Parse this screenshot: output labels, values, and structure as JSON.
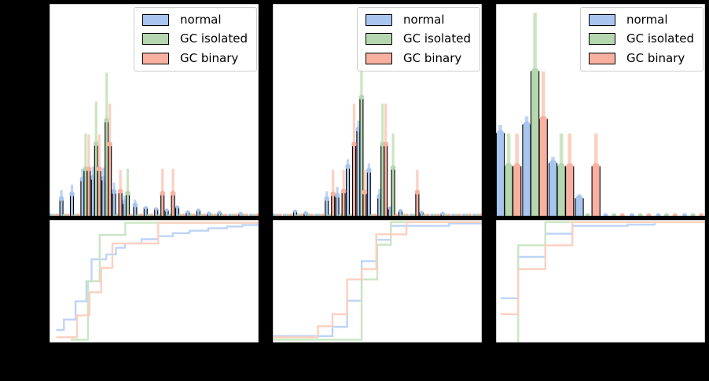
{
  "note": "axis tick labels and axis titles are rendered black-on-black and are not legible in the image; values below are fractions of each axis span",
  "colors": {
    "background": "#000000",
    "panel_background": "#ffffff",
    "spine": "#000000",
    "legend_border": "#cccccc",
    "normal": "#a8c5ef",
    "gc_isolated": "#b5d7af",
    "gc_binary": "#f8b1a0",
    "normal_light": "#bdd4f6",
    "gc_isolated_light": "#cbe5c2",
    "gc_binary_light": "#fbd0c0"
  },
  "legend": {
    "items": [
      {
        "id": "normal",
        "label": "normal"
      },
      {
        "id": "gc_isolated",
        "label": "GC isolated"
      },
      {
        "id": "gc_binary",
        "label": "GC binary"
      }
    ]
  },
  "chart_data": [
    {
      "panel": "left",
      "top_histogram": {
        "type": "bar",
        "bins": 20,
        "y_units": "fraction of axis height",
        "series": [
          {
            "name": "normal",
            "values": [
              0.012,
              0.085,
              0.107,
              0.176,
              0.184,
              0.18,
              0.118,
              0.07,
              0.055,
              0.042,
              0.036,
              0.03,
              0.045,
              0.022,
              0.03,
              0.016,
              0.02,
              0.013,
              0.015,
              0.01
            ],
            "err_upper": [
              0,
              0.125,
              0.15,
              0.225,
              0.235,
              0.23,
              0.16,
              0.1,
              0.08,
              0,
              0,
              0,
              0,
              0,
              0,
              0,
              0,
              0,
              0,
              0
            ]
          },
          {
            "name": "GC isolated",
            "values": [
              0.004,
              0.004,
              0.004,
              0.224,
              0.342,
              0.452,
              0.004,
              0.11,
              0.004,
              0.004,
              0.004,
              0.004,
              0.004,
              0.004,
              0.004,
              0.004,
              0.004,
              0.004,
              0.004,
              0.004
            ],
            "err_upper": [
              0,
              0,
              0,
              0.39,
              0.54,
              0.675,
              0,
              0.225,
              0,
              0,
              0,
              0,
              0,
              0,
              0,
              0,
              0,
              0,
              0,
              0
            ]
          },
          {
            "name": "GC binary",
            "values": [
              0.004,
              0.004,
              0.004,
              0.224,
              0.224,
              0.34,
              0.12,
              0.004,
              0.004,
              0.004,
              0.11,
              0.11,
              0.004,
              0.004,
              0.004,
              0.004,
              0.004,
              0.004,
              0.004,
              0.004
            ],
            "err_upper": [
              0,
              0,
              0,
              0.385,
              0.385,
              0.53,
              0.22,
              0,
              0,
              0,
              0.225,
              0.225,
              0,
              0,
              0,
              0,
              0,
              0,
              0,
              0
            ]
          }
        ]
      },
      "bottom_cdf": {
        "type": "line",
        "step": true,
        "x_range": [
          0,
          1
        ],
        "y_range": [
          0,
          1
        ],
        "series": [
          {
            "name": "normal",
            "points": [
              [
                0.03,
                0.1
              ],
              [
                0.067,
                0.1
              ],
              [
                0.067,
                0.185
              ],
              [
                0.123,
                0.185
              ],
              [
                0.123,
                0.335
              ],
              [
                0.175,
                0.335
              ],
              [
                0.175,
                0.5
              ],
              [
                0.2,
                0.5
              ],
              [
                0.2,
                0.68
              ],
              [
                0.27,
                0.68
              ],
              [
                0.27,
                0.72
              ],
              [
                0.317,
                0.72
              ],
              [
                0.317,
                0.775
              ],
              [
                0.36,
                0.775
              ],
              [
                0.36,
                0.81
              ],
              [
                0.44,
                0.81
              ],
              [
                0.44,
                0.845
              ],
              [
                0.52,
                0.845
              ],
              [
                0.52,
                0.87
              ],
              [
                0.59,
                0.87
              ],
              [
                0.59,
                0.895
              ],
              [
                0.67,
                0.895
              ],
              [
                0.67,
                0.915
              ],
              [
                0.76,
                0.915
              ],
              [
                0.76,
                0.935
              ],
              [
                0.85,
                0.935
              ],
              [
                0.85,
                0.95
              ],
              [
                0.925,
                0.95
              ],
              [
                0.925,
                0.962
              ],
              [
                1.0,
                0.962
              ]
            ]
          },
          {
            "name": "GC isolated",
            "points": [
              [
                0.1,
                0.02
              ],
              [
                0.183,
                0.02
              ],
              [
                0.183,
                0.5
              ],
              [
                0.239,
                0.5
              ],
              [
                0.239,
                0.88
              ],
              [
                0.362,
                0.88
              ],
              [
                0.362,
                0.98
              ],
              [
                1.0,
                0.98
              ]
            ]
          },
          {
            "name": "GC binary",
            "points": [
              [
                0.03,
                0.04
              ],
              [
                0.13,
                0.04
              ],
              [
                0.13,
                0.22
              ],
              [
                0.19,
                0.22
              ],
              [
                0.19,
                0.41
              ],
              [
                0.246,
                0.41
              ],
              [
                0.246,
                0.61
              ],
              [
                0.3,
                0.61
              ],
              [
                0.3,
                0.81
              ],
              [
                0.52,
                0.81
              ],
              [
                0.52,
                0.98
              ],
              [
                1.0,
                0.98
              ]
            ]
          }
        ]
      }
    },
    {
      "panel": "middle",
      "top_histogram": {
        "type": "bar",
        "bins": 20,
        "y_units": "fraction of axis height",
        "series": [
          {
            "name": "normal",
            "values": [
              0.008,
              0.012,
              0.025,
              0.018,
              0.012,
              0.085,
              0.1,
              0.235,
              0.41,
              0.217,
              0.095,
              0.04,
              0.028,
              0.008,
              0.02,
              0.008,
              0.015,
              0.008,
              0.01,
              0.008
            ],
            "err_upper": [
              0,
              0,
              0,
              0,
              0,
              0.12,
              0.14,
              0.27,
              0.45,
              0.25,
              0.13,
              0,
              0,
              0,
              0,
              0,
              0,
              0,
              0,
              0
            ]
          },
          {
            "name": "GC isolated",
            "values": [
              0.004,
              0.004,
              0.004,
              0.004,
              0.004,
              0.004,
              0.004,
              0.004,
              0.56,
              0.004,
              0.34,
              0.23,
              0.004,
              0.004,
              0.004,
              0.004,
              0.004,
              0.004,
              0.004,
              0.004
            ],
            "err_upper": [
              0,
              0,
              0,
              0,
              0,
              0,
              0,
              0,
              0.9,
              0,
              0.53,
              0.39,
              0,
              0,
              0,
              0,
              0,
              0,
              0,
              0
            ]
          },
          {
            "name": "GC binary",
            "values": [
              0.004,
              0.004,
              0.004,
              0.004,
              0.004,
              0.107,
              0.12,
              0.34,
              0.115,
              0.004,
              0.34,
              0.004,
              0.004,
              0.115,
              0.004,
              0.004,
              0.004,
              0.004,
              0.004,
              0.004
            ],
            "err_upper": [
              0,
              0,
              0,
              0,
              0,
              0.22,
              0.22,
              0.53,
              0.22,
              0,
              0.53,
              0,
              0,
              0.22,
              0,
              0,
              0,
              0,
              0,
              0
            ]
          }
        ]
      },
      "bottom_cdf": {
        "type": "line",
        "step": true,
        "x_range": [
          0,
          1
        ],
        "y_range": [
          0,
          1
        ],
        "series": [
          {
            "name": "normal",
            "points": [
              [
                0.0,
                0.05
              ],
              [
                0.285,
                0.05
              ],
              [
                0.285,
                0.125
              ],
              [
                0.355,
                0.125
              ],
              [
                0.355,
                0.34
              ],
              [
                0.425,
                0.34
              ],
              [
                0.425,
                0.665
              ],
              [
                0.495,
                0.665
              ],
              [
                0.495,
                0.84
              ],
              [
                0.565,
                0.84
              ],
              [
                0.565,
                0.955
              ],
              [
                0.845,
                0.955
              ],
              [
                0.845,
                0.975
              ],
              [
                1.0,
                0.975
              ]
            ]
          },
          {
            "name": "GC isolated",
            "points": [
              [
                0.0,
                0.02
              ],
              [
                0.425,
                0.02
              ],
              [
                0.425,
                0.515
              ],
              [
                0.5,
                0.515
              ],
              [
                0.5,
                0.8
              ],
              [
                0.565,
                0.8
              ],
              [
                0.565,
                0.985
              ],
              [
                1.0,
                0.985
              ]
            ]
          },
          {
            "name": "GC binary",
            "points": [
              [
                0.0,
                0.04
              ],
              [
                0.215,
                0.04
              ],
              [
                0.215,
                0.13
              ],
              [
                0.285,
                0.13
              ],
              [
                0.285,
                0.23
              ],
              [
                0.355,
                0.23
              ],
              [
                0.355,
                0.515
              ],
              [
                0.425,
                0.515
              ],
              [
                0.425,
                0.6
              ],
              [
                0.495,
                0.6
              ],
              [
                0.495,
                0.885
              ],
              [
                0.64,
                0.885
              ],
              [
                0.64,
                0.985
              ],
              [
                1.0,
                0.985
              ]
            ]
          }
        ]
      }
    },
    {
      "panel": "right",
      "top_histogram": {
        "type": "bar",
        "bins": 8,
        "y_units": "fraction of axis height",
        "series": [
          {
            "name": "normal",
            "values": [
              0.39,
              0.43,
              0.25,
              0.085,
              0.012,
              0.012,
              0.012,
              0.01
            ],
            "err_upper": [
              0.43,
              0.47,
              0.28,
              0.105,
              0,
              0,
              0,
              0
            ]
          },
          {
            "name": "GC isolated",
            "values": [
              0.235,
              0.68,
              0.235,
              0.006,
              0.006,
              0.006,
              0.006,
              0.006
            ],
            "err_upper": [
              0.39,
              0.955,
              0.39,
              0,
              0,
              0,
              0,
              0
            ]
          },
          {
            "name": "GC binary",
            "values": [
              0.235,
              0.456,
              0.235,
              0.235,
              0.006,
              0.006,
              0.006,
              0.006
            ],
            "err_upper": [
              0.39,
              0.68,
              0.39,
              0.39,
              0,
              0,
              0,
              0
            ]
          }
        ]
      },
      "bottom_cdf": {
        "type": "line",
        "step": true,
        "x_range": [
          0,
          1
        ],
        "y_range": [
          0,
          1
        ],
        "series": [
          {
            "name": "normal",
            "points": [
              [
                0.02,
                0.36
              ],
              [
                0.105,
                0.36
              ],
              [
                0.105,
                0.7
              ],
              [
                0.235,
                0.7
              ],
              [
                0.235,
                0.89
              ],
              [
                0.365,
                0.89
              ],
              [
                0.365,
                0.955
              ],
              [
                0.63,
                0.955
              ],
              [
                0.63,
                0.965
              ],
              [
                0.76,
                0.965
              ],
              [
                0.76,
                0.985
              ],
              [
                1.0,
                0.985
              ]
            ]
          },
          {
            "name": "GC isolated",
            "points": [
              [
                0.105,
                0.0
              ],
              [
                0.105,
                0.795
              ],
              [
                0.235,
                0.795
              ],
              [
                0.235,
                0.985
              ],
              [
                1.0,
                0.985
              ]
            ]
          },
          {
            "name": "GC binary",
            "points": [
              [
                0.02,
                0.23
              ],
              [
                0.105,
                0.23
              ],
              [
                0.105,
                0.6
              ],
              [
                0.235,
                0.6
              ],
              [
                0.235,
                0.795
              ],
              [
                0.365,
                0.795
              ],
              [
                0.365,
                0.985
              ],
              [
                1.0,
                0.985
              ]
            ]
          }
        ]
      }
    }
  ]
}
